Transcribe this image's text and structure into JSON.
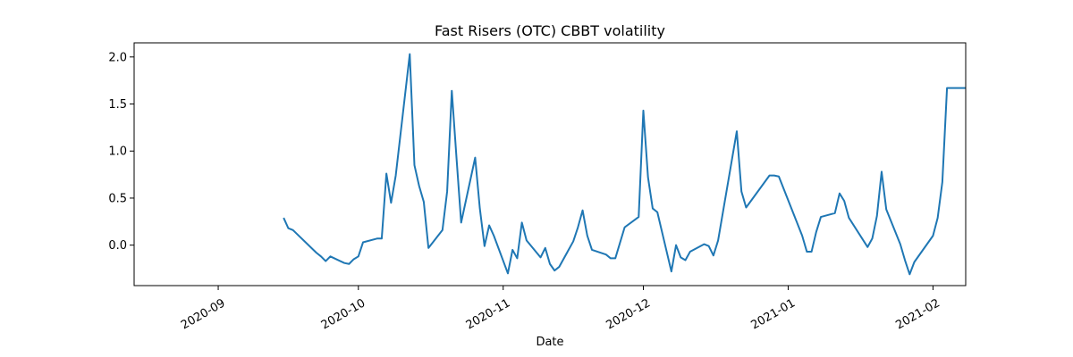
{
  "chart_data": {
    "type": "line",
    "title": "Fast Risers (OTC) CBBT volatility",
    "xlabel": "Date",
    "ylabel": "",
    "xlim": [
      "2020-08-14",
      "2021-02-08"
    ],
    "ylim": [
      -0.43,
      2.15
    ],
    "grid": false,
    "legend": "none",
    "x_ticks": [
      {
        "date": "2020-09-01",
        "label": "2020-09"
      },
      {
        "date": "2020-10-01",
        "label": "2020-10"
      },
      {
        "date": "2020-11-01",
        "label": "2020-11"
      },
      {
        "date": "2020-12-01",
        "label": "2020-12"
      },
      {
        "date": "2021-01-01",
        "label": "2021-01"
      },
      {
        "date": "2021-02-01",
        "label": "2021-02"
      }
    ],
    "y_ticks": [
      {
        "value": -0.0,
        "label": "0.0"
      },
      {
        "value": 0.5,
        "label": "0.5"
      },
      {
        "value": 1.0,
        "label": "1.0"
      },
      {
        "value": 1.5,
        "label": "1.5"
      },
      {
        "value": 2.0,
        "label": "2.0"
      }
    ],
    "series": [
      {
        "color": "#1f77b4",
        "x": [
          "2020-09-15",
          "2020-09-16",
          "2020-09-17",
          "2020-09-22",
          "2020-09-23",
          "2020-09-24",
          "2020-09-25",
          "2020-09-28",
          "2020-09-29",
          "2020-09-30",
          "2020-10-01",
          "2020-10-02",
          "2020-10-05",
          "2020-10-06",
          "2020-10-07",
          "2020-10-08",
          "2020-10-09",
          "2020-10-12",
          "2020-10-13",
          "2020-10-14",
          "2020-10-15",
          "2020-10-16",
          "2020-10-19",
          "2020-10-20",
          "2020-10-21",
          "2020-10-22",
          "2020-10-23",
          "2020-10-26",
          "2020-10-27",
          "2020-10-28",
          "2020-10-29",
          "2020-10-30",
          "2020-11-02",
          "2020-11-03",
          "2020-11-04",
          "2020-11-05",
          "2020-11-06",
          "2020-11-09",
          "2020-11-10",
          "2020-11-11",
          "2020-11-12",
          "2020-11-13",
          "2020-11-16",
          "2020-11-17",
          "2020-11-18",
          "2020-11-19",
          "2020-11-20",
          "2020-11-23",
          "2020-11-24",
          "2020-11-25",
          "2020-11-27",
          "2020-11-30",
          "2020-12-01",
          "2020-12-02",
          "2020-12-03",
          "2020-12-04",
          "2020-12-07",
          "2020-12-08",
          "2020-12-09",
          "2020-12-10",
          "2020-12-11",
          "2020-12-14",
          "2020-12-15",
          "2020-12-16",
          "2020-12-17",
          "2020-12-21",
          "2020-12-22",
          "2020-12-23",
          "2020-12-28",
          "2020-12-29",
          "2020-12-30",
          "2021-01-04",
          "2021-01-05",
          "2021-01-06",
          "2021-01-07",
          "2021-01-08",
          "2021-01-11",
          "2021-01-12",
          "2021-01-13",
          "2021-01-14",
          "2021-01-18",
          "2021-01-19",
          "2021-01-20",
          "2021-01-21",
          "2021-01-22",
          "2021-01-25",
          "2021-01-26",
          "2021-01-27",
          "2021-01-28",
          "2021-02-01",
          "2021-02-02",
          "2021-02-03",
          "2021-02-04",
          "2021-02-07",
          "2021-02-08"
        ],
        "y": [
          0.29,
          0.18,
          0.16,
          -0.08,
          -0.12,
          -0.17,
          -0.12,
          -0.19,
          -0.2,
          -0.15,
          -0.12,
          0.03,
          0.07,
          0.07,
          0.76,
          0.45,
          0.74,
          2.03,
          0.85,
          0.63,
          0.46,
          -0.03,
          0.16,
          0.57,
          1.64,
          0.93,
          0.24,
          0.93,
          0.39,
          -0.01,
          0.21,
          0.1,
          -0.3,
          -0.05,
          -0.14,
          0.24,
          0.05,
          -0.13,
          -0.03,
          -0.2,
          -0.27,
          -0.23,
          0.04,
          0.19,
          0.37,
          0.1,
          -0.05,
          -0.1,
          -0.14,
          -0.14,
          0.19,
          0.3,
          1.43,
          0.72,
          0.39,
          0.35,
          -0.28,
          0.0,
          -0.13,
          -0.16,
          -0.07,
          0.01,
          -0.01,
          -0.11,
          0.05,
          1.21,
          0.57,
          0.4,
          0.74,
          0.74,
          0.73,
          0.1,
          -0.07,
          -0.07,
          0.14,
          0.3,
          0.34,
          0.55,
          0.47,
          0.29,
          -0.02,
          0.07,
          0.31,
          0.78,
          0.38,
          0.01,
          -0.16,
          -0.31,
          -0.18,
          0.1,
          0.29,
          0.67,
          1.67,
          1.67,
          1.67
        ]
      }
    ]
  }
}
